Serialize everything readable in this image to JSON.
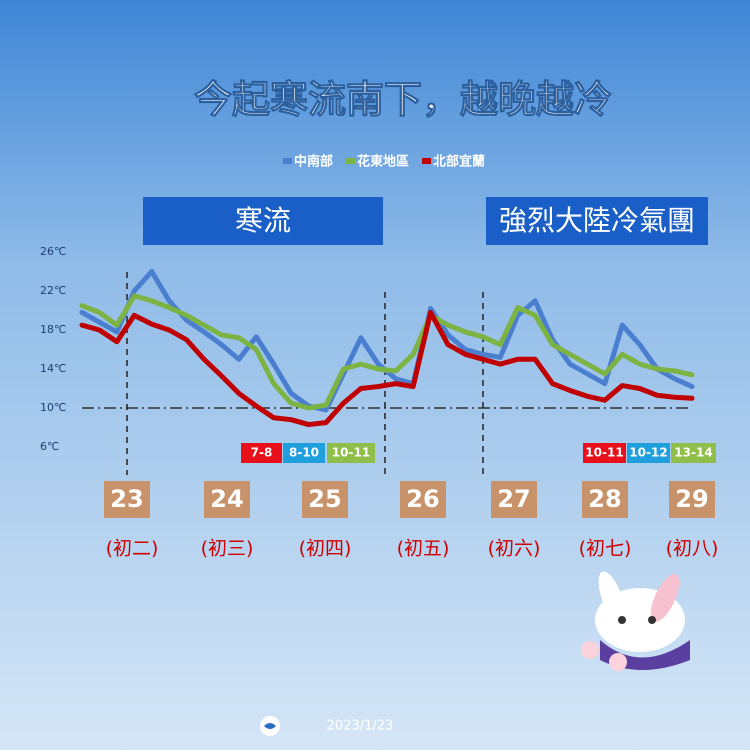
{
  "chart_data": {
    "type": "line",
    "title": "今起寒流南下，越晚越冷",
    "categories": [
      null,
      null,
      null,
      null,
      null,
      null,
      null,
      null,
      null,
      null,
      null,
      null,
      null,
      null,
      null,
      null,
      null,
      null,
      null,
      null,
      null,
      null,
      null,
      null,
      null,
      null,
      null,
      null,
      null,
      null,
      null,
      null,
      null,
      null,
      null,
      null
    ],
    "series": [
      {
        "name": "中南部",
        "color": "#4a7fd0",
        "values": [
          19.8,
          18.8,
          17.8,
          22,
          24,
          21,
          19,
          17.8,
          16.5,
          15,
          17.3,
          14.5,
          11.5,
          10.2,
          9.8,
          13.5,
          17.2,
          14.5,
          13,
          12.5,
          20.2,
          17.5,
          16,
          15.5,
          15.2,
          19.5,
          21,
          17,
          14.5,
          13.5,
          12.5,
          18.5,
          16.5,
          14,
          13,
          12.2
        ]
      },
      {
        "name": "花東地區",
        "color": "#7cb342",
        "values": [
          20.5,
          19.8,
          18.5,
          21.5,
          21,
          20.3,
          19.5,
          18.5,
          17.5,
          17.2,
          16,
          12.5,
          10.5,
          10,
          10.3,
          14,
          14.5,
          14,
          13.8,
          15.5,
          19.5,
          18.5,
          17.8,
          17.3,
          16.5,
          20.3,
          19.5,
          16.5,
          15.5,
          14.5,
          13.5,
          15.5,
          14.5,
          14,
          13.8,
          13.4
        ]
      },
      {
        "name": "北部宜蘭",
        "color": "#c00000",
        "values": [
          18.5,
          18,
          16.8,
          19.5,
          18.6,
          18,
          17,
          15,
          13.3,
          11.5,
          10.2,
          9,
          8.8,
          8.3,
          8.5,
          10.5,
          12,
          12.2,
          12.5,
          12.2,
          19.8,
          16.5,
          15.5,
          15,
          14.5,
          15,
          15,
          12.5,
          11.8,
          11.2,
          10.8,
          12.3,
          12,
          11.3,
          11.1,
          11
        ]
      }
    ],
    "ylim": [
      6,
      26
    ],
    "yticks": [
      {
        "value": 6,
        "label": "6℃"
      },
      {
        "value": 10,
        "label": "10℃"
      },
      {
        "value": 14,
        "label": "14℃"
      },
      {
        "value": 18,
        "label": "18℃"
      },
      {
        "value": 22,
        "label": "22℃"
      },
      {
        "value": 26,
        "label": "26℃"
      }
    ],
    "reference_line": 10,
    "banners": [
      "寒流",
      "強烈大陸冷氣團"
    ],
    "badges": [
      {
        "text": "7-8",
        "color": "#e8101a"
      },
      {
        "text": "8-10",
        "color": "#1fa0dd"
      },
      {
        "text": "10-11",
        "color": "#8fbf4a"
      },
      {
        "text": "10-11",
        "color": "#e8101a"
      },
      {
        "text": "10-12",
        "color": "#1fa0dd"
      },
      {
        "text": "13-14",
        "color": "#8fbf4a"
      }
    ],
    "days": [
      "23",
      "24",
      "25",
      "26",
      "27",
      "28",
      "29"
    ],
    "lunar_days": [
      "(初二)",
      "(初三)",
      "(初四)",
      "(初五)",
      "(初六)",
      "(初七)",
      "(初八)"
    ],
    "footer": "2023/1/23"
  }
}
